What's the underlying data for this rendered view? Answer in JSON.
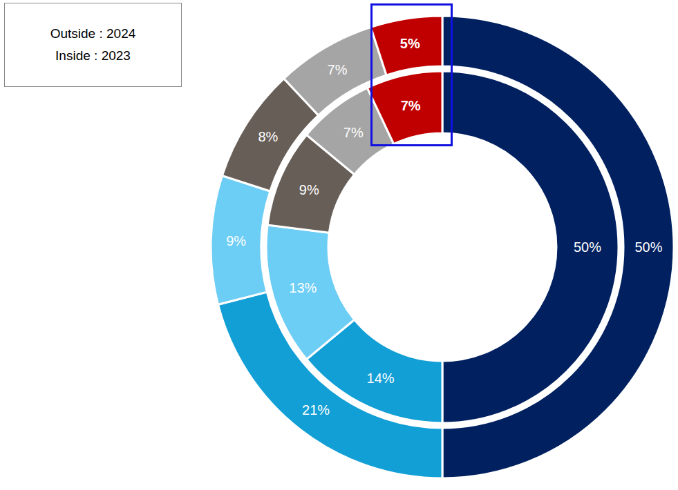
{
  "chart_data": {
    "type": "pie",
    "colors": [
      "#002060",
      "#129FD6",
      "#6CCDF5",
      "#675E57",
      "#A5A5A5",
      "#C00000"
    ],
    "data_labels": true,
    "legend": "top-left",
    "series": [
      {
        "name": "Outside : 2024",
        "values": [
          50,
          21,
          9,
          8,
          7,
          5
        ],
        "value_labels": [
          "50%",
          "21%",
          "9%",
          "8%",
          "7%",
          "5%"
        ]
      },
      {
        "name": "Inside : 2023",
        "values": [
          50,
          14,
          13,
          9,
          7,
          7
        ],
        "value_labels": [
          "50%",
          "14%",
          "13%",
          "9%",
          "7%",
          "7%"
        ]
      }
    ]
  }
}
